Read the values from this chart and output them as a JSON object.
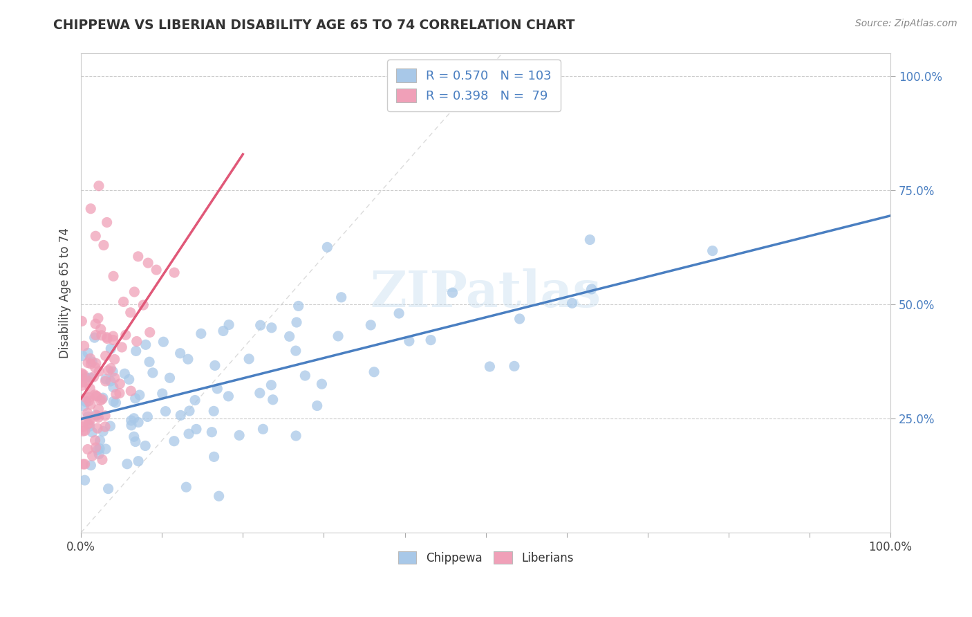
{
  "title": "CHIPPEWA VS LIBERIAN DISABILITY AGE 65 TO 74 CORRELATION CHART",
  "source_text": "Source: ZipAtlas.com",
  "ylabel": "Disability Age 65 to 74",
  "chippewa_color": "#a8c8e8",
  "liberian_color": "#f0a0b8",
  "trendline_chippewa_color": "#4a7fc1",
  "trendline_liberian_color": "#e05878",
  "diagonal_color": "#cccccc",
  "watermark": "ZIPatlas",
  "R_chippewa": 0.57,
  "N_chippewa": 103,
  "R_liberian": 0.398,
  "N_liberian": 79,
  "xlim": [
    0.0,
    1.0
  ],
  "ylim": [
    0.0,
    1.05
  ],
  "yticks": [
    0.25,
    0.5,
    0.75,
    1.0
  ],
  "xticks": [
    0.0,
    0.1,
    0.2,
    0.3,
    0.4,
    0.5,
    0.6,
    0.7,
    0.8,
    0.9,
    1.0
  ],
  "legend_R_color": "#4a7fc1",
  "legend_N_color": "#e05060"
}
